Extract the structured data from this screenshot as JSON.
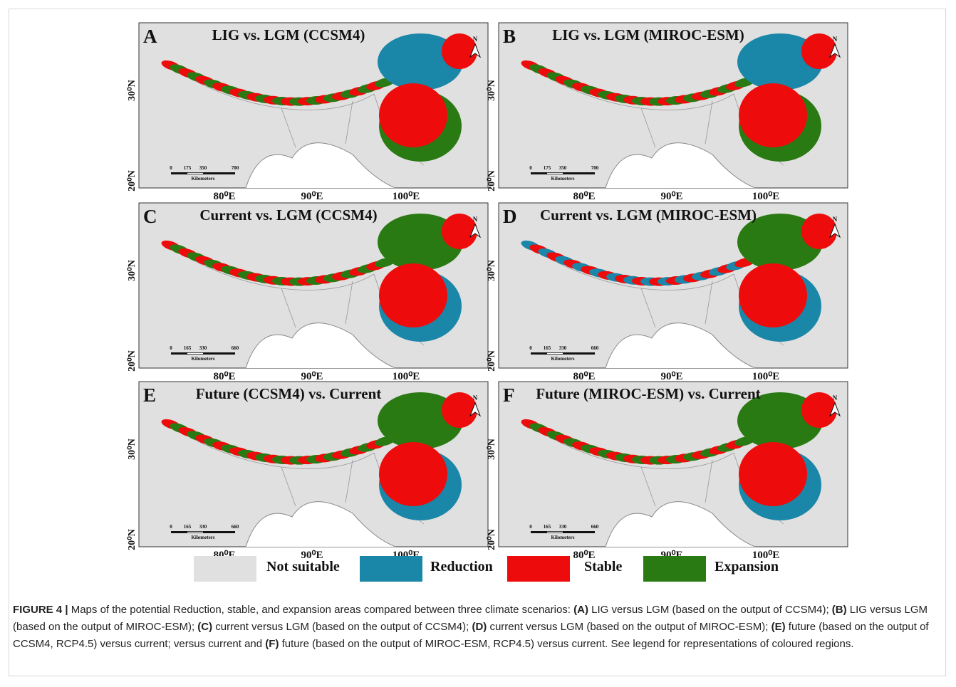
{
  "panels": [
    {
      "letter": "A",
      "title": "LIG vs. LGM (CCSM4)",
      "lat_labels": [
        "30⁰N",
        "20⁰N"
      ],
      "lon_labels": [
        "80⁰E",
        "90⁰E",
        "100⁰E"
      ],
      "scale_labels": [
        "0",
        "175",
        "350",
        "700"
      ],
      "scale_unit": "Kilometers",
      "north": "N"
    },
    {
      "letter": "B",
      "title": "LIG vs. LGM (MIROC-ESM)",
      "lat_labels": [
        "30⁰N",
        "20⁰N"
      ],
      "lon_labels": [
        "80⁰E",
        "90⁰E",
        "100⁰E"
      ],
      "scale_labels": [
        "0",
        "175",
        "350",
        "700"
      ],
      "scale_unit": "Kilometers",
      "north": "N"
    },
    {
      "letter": "C",
      "title": "Current vs. LGM (CCSM4)",
      "lat_labels": [
        "30⁰N",
        "20⁰N"
      ],
      "lon_labels": [
        "80⁰E",
        "90⁰E",
        "100⁰E"
      ],
      "scale_labels": [
        "0",
        "165",
        "330",
        "660"
      ],
      "scale_unit": "Kilometers",
      "north": "N"
    },
    {
      "letter": "D",
      "title": "Current vs. LGM (MIROC-ESM)",
      "lat_labels": [
        "30⁰N",
        "20⁰N"
      ],
      "lon_labels": [
        "80⁰E",
        "90⁰E",
        "100⁰E"
      ],
      "scale_labels": [
        "0",
        "165",
        "330",
        "660"
      ],
      "scale_unit": "Kilometers",
      "north": "N"
    },
    {
      "letter": "E",
      "title": "Future (CCSM4) vs. Current",
      "lat_labels": [
        "30⁰N",
        "20⁰N"
      ],
      "lon_labels": [
        "80⁰E",
        "90⁰E",
        "100⁰E"
      ],
      "scale_labels": [
        "0",
        "165",
        "330",
        "660"
      ],
      "scale_unit": "Kilometers",
      "north": "N"
    },
    {
      "letter": "F",
      "title": "Future (MIROC-ESM) vs. Current",
      "lat_labels": [
        "30⁰N",
        "20⁰N"
      ],
      "lon_labels": [
        "80⁰E",
        "90⁰E",
        "100⁰E"
      ],
      "scale_labels": [
        "0",
        "165",
        "330",
        "660"
      ],
      "scale_unit": "Kilometers",
      "north": "N"
    }
  ],
  "legend": [
    {
      "label": "Not suitable",
      "color": "#e0e0e0"
    },
    {
      "label": "Reduction",
      "color": "#1a86a8"
    },
    {
      "label": "Stable",
      "color": "#ee0b0b"
    },
    {
      "label": "Expansion",
      "color": "#2a7a14"
    }
  ],
  "caption": [
    {
      "text": "FIGURE 4 | ",
      "bold": true
    },
    {
      "text": "Maps of the potential Reduction, stable, and expansion areas compared between three climate scenarios: ",
      "bold": false
    },
    {
      "text": "(A)",
      "bold": true
    },
    {
      "text": " LIG versus LGM (based on the output of CCSM4); ",
      "bold": false
    },
    {
      "text": "(B)",
      "bold": true
    },
    {
      "text": " LIG versus LGM (based on the output of MIROC-ESM); ",
      "bold": false
    },
    {
      "text": "(C)",
      "bold": true
    },
    {
      "text": " current versus LGM (based on the output of CCSM4); ",
      "bold": false
    },
    {
      "text": "(D)",
      "bold": true
    },
    {
      "text": " current versus LGM (based on the output of MIROC-ESM); ",
      "bold": false
    },
    {
      "text": "(E)",
      "bold": true
    },
    {
      "text": " future (based on the output of CCSM4, RCP4.5) versus current; versus current and ",
      "bold": false
    },
    {
      "text": "(F)",
      "bold": true
    },
    {
      "text": " future  (based on the output of MIROC-ESM, RCP4.5) versus current. See legend for representations of coloured regions.",
      "bold": false
    }
  ]
}
